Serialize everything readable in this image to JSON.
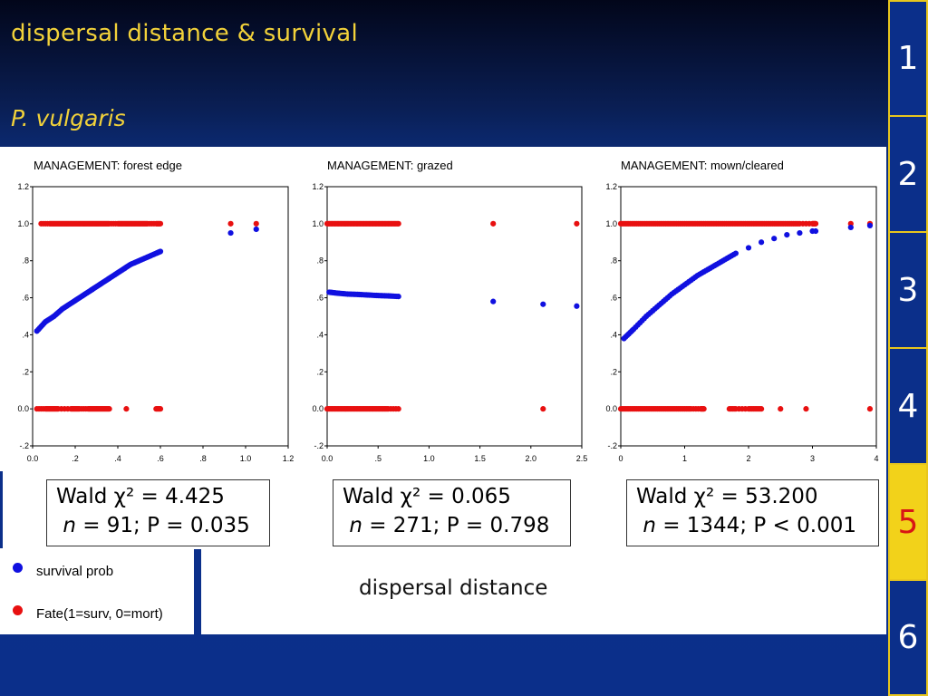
{
  "slide": {
    "title": "dispersal distance & survival",
    "subtitle": "P. vulgaris",
    "x_axis_title": "dispersal distance"
  },
  "legend": {
    "survival_label": "survival prob",
    "fate_label": "Fate(1=surv, 0=mort)",
    "survival_color": "#1010e0",
    "fate_color": "#e81010"
  },
  "nav": {
    "items": [
      "1",
      "2",
      "3",
      "4",
      "5",
      "6"
    ],
    "active": "5"
  },
  "stats": [
    {
      "wald": "Wald χ² = 4.425",
      "n_prefix": "n",
      "rest": " = 91; P = 0.035"
    },
    {
      "wald": "Wald χ² = 0.065",
      "n_prefix": "n",
      "rest": " = 271; P = 0.798"
    },
    {
      "wald": "Wald χ² = 53.200",
      "n_prefix": "n",
      "rest": " = 1344; P < 0.001"
    }
  ],
  "chart_data": [
    {
      "type": "scatter",
      "title": "MANAGEMENT:  forest edge",
      "xlim": [
        0,
        1.2
      ],
      "ylim": [
        -0.2,
        1.2
      ],
      "xticks": [
        0,
        0.2,
        0.4,
        0.6,
        0.8,
        1.0,
        1.2
      ],
      "xtick_labels": [
        "0.0",
        ".2",
        ".4",
        ".6",
        ".8",
        "1.0",
        "1.2"
      ],
      "yticks": [
        -0.2,
        0,
        0.2,
        0.4,
        0.6,
        0.8,
        1.0,
        1.2
      ],
      "ytick_labels": [
        "-.2",
        "0.0",
        ".2",
        ".4",
        ".6",
        ".8",
        "1.0",
        "1.2"
      ],
      "survival_prob": {
        "x": [
          0.02,
          0.06,
          0.1,
          0.14,
          0.18,
          0.22,
          0.26,
          0.3,
          0.34,
          0.38,
          0.42,
          0.46,
          0.5,
          0.54,
          0.58,
          0.6,
          0.93,
          1.05
        ],
        "y": [
          0.42,
          0.47,
          0.5,
          0.54,
          0.57,
          0.6,
          0.63,
          0.66,
          0.69,
          0.72,
          0.75,
          0.78,
          0.8,
          0.82,
          0.84,
          0.85,
          0.95,
          0.97
        ],
        "dense": [
          [
            0.02,
            0.6
          ]
        ]
      },
      "fate_surv_x": [
        0.04,
        0.08,
        0.1,
        0.12,
        0.14,
        0.16,
        0.18,
        0.2,
        0.22,
        0.24,
        0.26,
        0.28,
        0.3,
        0.32,
        0.34,
        0.36,
        0.4,
        0.42,
        0.44,
        0.46,
        0.48,
        0.5,
        0.52,
        0.54,
        0.58,
        0.6,
        0.93,
        1.05
      ],
      "fate_mort_x": [
        0.02,
        0.06,
        0.08,
        0.1,
        0.12,
        0.18,
        0.2,
        0.22,
        0.26,
        0.28,
        0.3,
        0.32,
        0.34,
        0.36,
        0.44,
        0.58,
        0.6
      ]
    },
    {
      "type": "scatter",
      "title": "MANAGEMENT:  grazed",
      "xlim": [
        0,
        2.5
      ],
      "ylim": [
        -0.2,
        1.2
      ],
      "xticks": [
        0,
        0.5,
        1.0,
        1.5,
        2.0,
        2.5
      ],
      "xtick_labels": [
        "0.0",
        ".5",
        "1.0",
        "1.5",
        "2.0",
        "2.5"
      ],
      "yticks": [
        -0.2,
        0,
        0.2,
        0.4,
        0.6,
        0.8,
        1.0,
        1.2
      ],
      "ytick_labels": [
        "-.2",
        "0.0",
        ".2",
        ".4",
        ".6",
        ".8",
        "1.0",
        "1.2"
      ],
      "survival_prob": {
        "x": [
          0.02,
          0.1,
          0.2,
          0.3,
          0.4,
          0.5,
          0.6,
          0.7,
          1.63,
          2.12,
          2.45
        ],
        "y": [
          0.63,
          0.625,
          0.62,
          0.618,
          0.615,
          0.612,
          0.61,
          0.607,
          0.58,
          0.565,
          0.555
        ],
        "dense": [
          [
            0.0,
            0.7
          ]
        ]
      },
      "fate_surv_x": [
        0.0,
        0.05,
        0.1,
        0.15,
        0.2,
        0.25,
        0.3,
        0.35,
        0.4,
        0.45,
        0.5,
        0.55,
        0.6,
        0.65,
        0.7,
        1.63,
        2.45
      ],
      "fate_mort_x": [
        0.0,
        0.05,
        0.1,
        0.15,
        0.2,
        0.25,
        0.3,
        0.35,
        0.4,
        0.45,
        0.5,
        0.55,
        0.6,
        0.7,
        2.12
      ]
    },
    {
      "type": "scatter",
      "title": "MANAGEMENT:  mown/cleared",
      "xlim": [
        0,
        4
      ],
      "ylim": [
        -0.2,
        1.2
      ],
      "xticks": [
        0,
        1,
        2,
        3,
        4
      ],
      "xtick_labels": [
        "0",
        "1",
        "2",
        "3",
        "4"
      ],
      "yticks": [
        -0.2,
        0,
        0.2,
        0.4,
        0.6,
        0.8,
        1.0,
        1.2
      ],
      "ytick_labels": [
        "-.2",
        "0.0",
        ".2",
        ".4",
        ".6",
        ".8",
        "1.0",
        "1.2"
      ],
      "survival_prob": {
        "x": [
          0.05,
          0.2,
          0.4,
          0.6,
          0.8,
          1.0,
          1.2,
          1.4,
          1.6,
          1.8,
          2.0,
          2.2,
          2.4,
          2.6,
          2.8,
          3.0,
          3.05,
          3.6,
          3.9
        ],
        "y": [
          0.38,
          0.43,
          0.5,
          0.56,
          0.62,
          0.67,
          0.72,
          0.76,
          0.8,
          0.84,
          0.87,
          0.9,
          0.92,
          0.94,
          0.95,
          0.96,
          0.96,
          0.98,
          0.99
        ],
        "dense": [
          [
            0.0,
            1.9
          ]
        ]
      },
      "fate_surv_x": [
        0.0,
        0.1,
        0.2,
        0.3,
        0.4,
        0.5,
        0.6,
        0.7,
        0.8,
        0.9,
        1.0,
        1.1,
        1.2,
        1.3,
        1.4,
        1.5,
        1.6,
        1.7,
        1.8,
        1.9,
        2.0,
        2.1,
        2.2,
        2.3,
        2.4,
        2.5,
        2.6,
        2.7,
        2.8,
        3.0,
        3.05,
        3.6,
        3.9
      ],
      "fate_mort_x": [
        0.0,
        0.1,
        0.2,
        0.3,
        0.4,
        0.5,
        0.6,
        0.7,
        0.8,
        0.9,
        1.0,
        1.1,
        1.25,
        1.3,
        1.7,
        1.8,
        2.0,
        2.1,
        2.2,
        2.5,
        2.9,
        3.9
      ]
    }
  ]
}
